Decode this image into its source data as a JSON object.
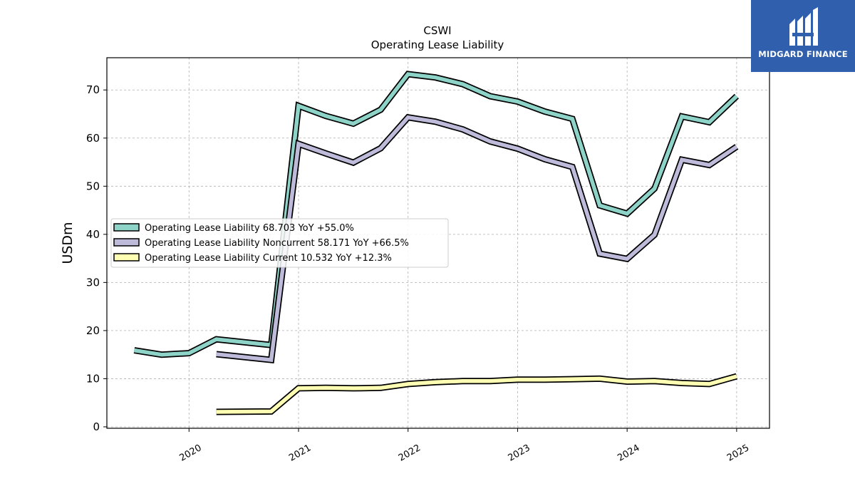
{
  "chart_data": {
    "type": "line",
    "title": "CSWI",
    "subtitle": "Operating Lease Liability",
    "xlabel": "",
    "ylabel": "USDm",
    "xlim": [
      2019.25,
      2025.3
    ],
    "ylim": [
      -0.3,
      76.7
    ],
    "x_ticks": [
      "2020",
      "2021",
      "2022",
      "2023",
      "2024",
      "2025"
    ],
    "y_ticks": [
      "0",
      "10",
      "20",
      "30",
      "40",
      "50",
      "60",
      "70"
    ],
    "grid": true,
    "legend_position": "center-left",
    "series": [
      {
        "name": "Operating Lease Liability  68.703 YoY +55.0%",
        "color": "#8dd3c7",
        "x": [
          2019.5,
          2019.75,
          2020.0,
          2020.25,
          2020.75,
          2021.0,
          2021.25,
          2021.5,
          2021.75,
          2022.0,
          2022.25,
          2022.5,
          2022.75,
          2023.0,
          2023.25,
          2023.5,
          2023.75,
          2024.0,
          2024.25,
          2024.5,
          2024.75,
          2025.0
        ],
        "y": [
          15.9,
          15.0,
          15.3,
          18.2,
          17.0,
          66.7,
          64.6,
          63.0,
          65.9,
          73.3,
          72.6,
          71.2,
          68.7,
          67.6,
          65.5,
          64.0,
          46.0,
          44.3,
          49.5,
          64.5,
          63.3,
          68.7
        ]
      },
      {
        "name": "Operating Lease Liability Noncurrent  58.171 YoY +66.5%",
        "color": "#bebada",
        "x": [
          2020.25,
          2020.75,
          2021.0,
          2021.25,
          2021.5,
          2021.75,
          2022.0,
          2022.25,
          2022.5,
          2022.75,
          2023.0,
          2023.25,
          2023.5,
          2023.75,
          2024.0,
          2024.25,
          2024.5,
          2024.75,
          2025.0
        ],
        "y": [
          15.1,
          13.9,
          58.8,
          56.8,
          54.9,
          57.9,
          64.3,
          63.4,
          61.8,
          59.3,
          57.8,
          55.6,
          54.0,
          36.0,
          34.9,
          39.9,
          55.5,
          54.4,
          58.2
        ]
      },
      {
        "name": "Operating Lease Liability Current  10.532 YoY +12.3%",
        "color": "#ffffb3",
        "x": [
          2020.25,
          2020.75,
          2021.0,
          2021.25,
          2021.5,
          2021.75,
          2022.0,
          2022.25,
          2022.5,
          2022.75,
          2023.0,
          2023.25,
          2023.5,
          2023.75,
          2024.0,
          2024.25,
          2024.5,
          2024.75,
          2025.0
        ],
        "y": [
          3.1,
          3.2,
          8.0,
          8.1,
          8.0,
          8.1,
          8.9,
          9.3,
          9.5,
          9.5,
          9.8,
          9.8,
          9.9,
          10.0,
          9.4,
          9.5,
          9.1,
          8.9,
          10.5
        ]
      }
    ]
  },
  "logo": {
    "text": "MIDGARD FINANCE"
  }
}
